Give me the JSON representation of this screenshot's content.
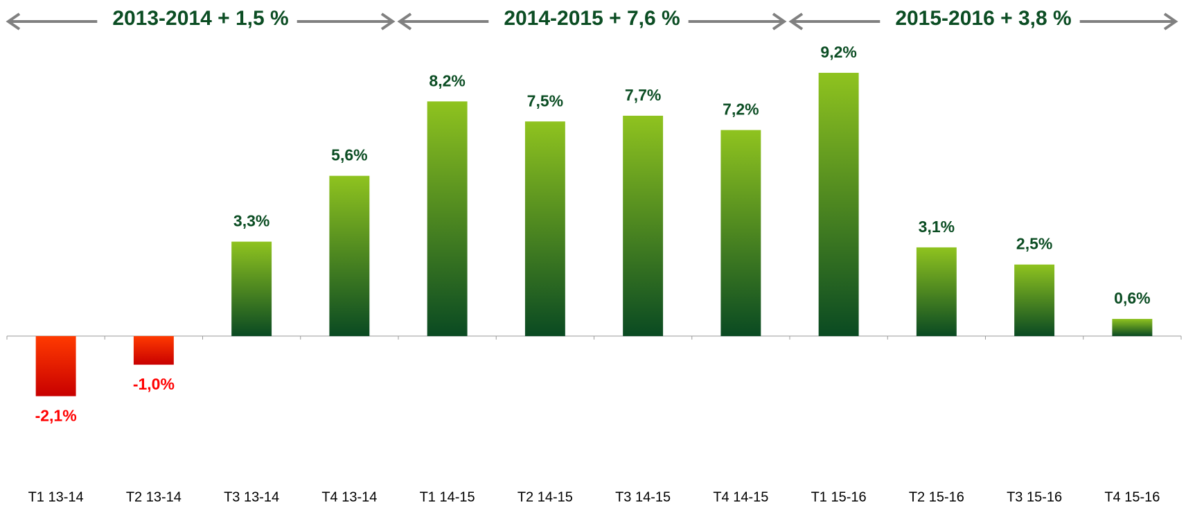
{
  "chart_data": {
    "type": "bar",
    "categories": [
      "T1 13-14",
      "T2 13-14",
      "T3 13-14",
      "T4 13-14",
      "T1 14-15",
      "T2 14-15",
      "T3 14-15",
      "T4 14-15",
      "T1 15-16",
      "T2 15-16",
      "T3 15-16",
      "T4 15-16"
    ],
    "values": [
      -2.1,
      -1.0,
      3.3,
      5.6,
      8.2,
      7.5,
      7.7,
      7.2,
      9.2,
      3.1,
      2.5,
      0.6
    ],
    "value_labels": [
      "-2,1%",
      "-1,0%",
      "3,3%",
      "5,6%",
      "8,2%",
      "7,5%",
      "7,7%",
      "7,2%",
      "9,2%",
      "3,1%",
      "2,5%",
      "0,6%"
    ],
    "annotations": [
      "2013-2014 + 1,5 %",
      "2014-2015 + 7,6 %",
      "2015-2016 + 3,8 %"
    ],
    "colors": {
      "positive": [
        "#8fc31f",
        "#0a4a22"
      ],
      "negative": [
        "#ff3a00",
        "#c80000"
      ],
      "positive_label": "#0b4d23",
      "negative_label": "#ff0000"
    },
    "ylim": [
      -4,
      10
    ]
  }
}
